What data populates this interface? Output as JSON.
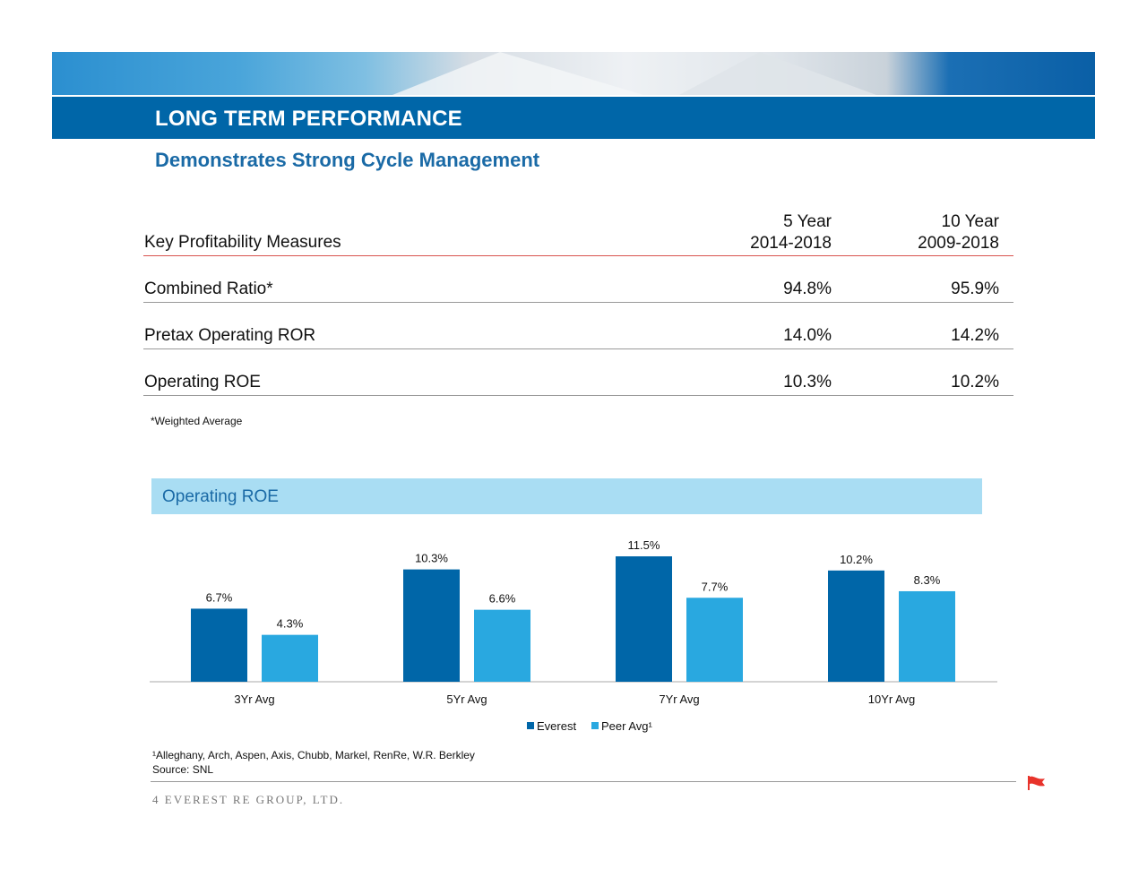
{
  "header": {
    "title": "LONG TERM PERFORMANCE",
    "subtitle": "Demonstrates Strong Cycle Management"
  },
  "table": {
    "label_header": "Key Profitability Measures",
    "col1_line1": "5 Year",
    "col1_line2": "2014-2018",
    "col2_line1": "10 Year",
    "col2_line2": "2009-2018",
    "rows": [
      {
        "label": "Combined Ratio*",
        "v1": "94.8%",
        "v2": "95.9%"
      },
      {
        "label": "Pretax Operating ROR",
        "v1": "14.0%",
        "v2": "14.2%"
      },
      {
        "label": "Operating ROE",
        "v1": "10.3%",
        "v2": "10.2%"
      }
    ],
    "footnote": "*Weighted Average"
  },
  "chart_header": "Operating ROE",
  "chart_data": {
    "type": "bar",
    "title": "Operating ROE",
    "categories": [
      "3Yr Avg",
      "5Yr Avg",
      "7Yr Avg",
      "10Yr Avg"
    ],
    "series": [
      {
        "name": "Everest",
        "values": [
          6.7,
          10.3,
          11.5,
          10.2
        ],
        "labels": [
          "6.7%",
          "10.3%",
          "11.5%",
          "10.2%"
        ],
        "color": "#0066a8"
      },
      {
        "name": "Peer Avg¹",
        "values": [
          4.3,
          6.6,
          7.7,
          8.3
        ],
        "labels": [
          "4.3%",
          "6.6%",
          "7.7%",
          "8.3%"
        ],
        "color": "#29a8e0"
      }
    ],
    "ylim": [
      0,
      13
    ],
    "legend": "bottom",
    "grid": false
  },
  "footnotes": {
    "peers": "¹Alleghany, Arch, Aspen, Axis, Chubb, Markel, RenRe, W.R. Berkley",
    "source": "Source:  SNL"
  },
  "footer": {
    "page_number": "4",
    "company": "EVEREST RE GROUP, LTD."
  },
  "icons": {
    "flag": "flag-icon",
    "flag_color": "#e8332b"
  }
}
